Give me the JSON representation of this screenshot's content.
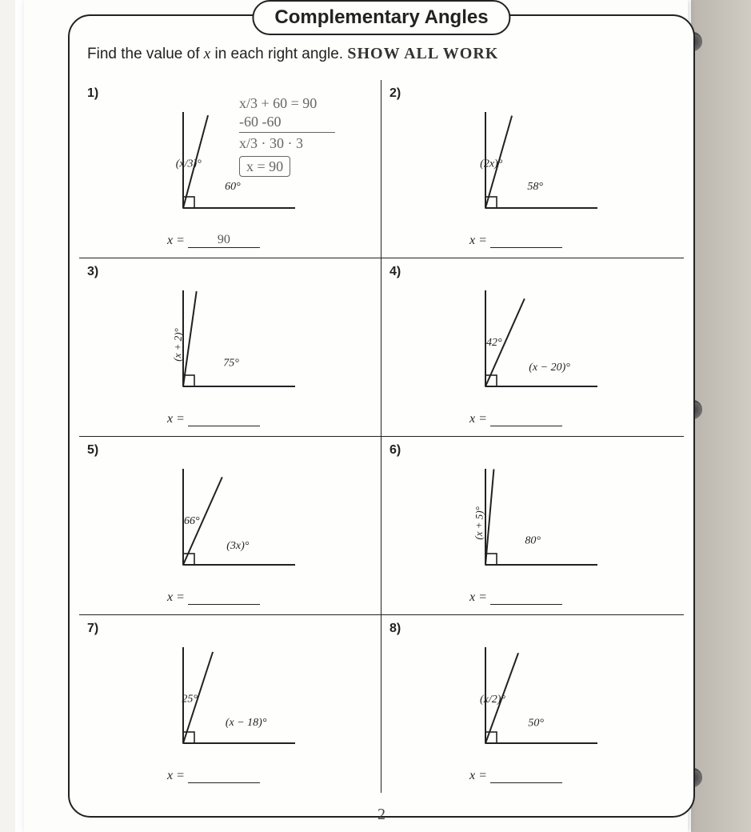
{
  "title": "Complementary Angles",
  "instruction_prefix": "Find the value of ",
  "instruction_var": "x",
  "instruction_suffix": " in each right angle.",
  "instruction_handwritten": " SHOW ALL WORK",
  "footer_page": "2",
  "answer_prefix": "x =",
  "problems": [
    {
      "num": "1)",
      "angle1_label": "(x/3)°",
      "angle2_label": "60°",
      "angle1_deg": 75,
      "angle2_deg_start": 0,
      "angle2_deg_end": 60,
      "answer": "90",
      "work_lines": [
        "x/3 + 60 = 90",
        "   -60   -60",
        "x/3 · 30 · 3",
        "x = 90"
      ],
      "work_box": true
    },
    {
      "num": "2)",
      "angle1_label": "(2x)°",
      "angle2_label": "58°",
      "angle1_deg": 74,
      "angle2_deg_start": 0,
      "angle2_deg_end": 58,
      "answer": ""
    },
    {
      "num": "3)",
      "angle1_label": "(x + 2)°",
      "angle2_label": "75°",
      "angle1_deg": 82,
      "angle2_deg_start": 0,
      "angle2_deg_end": 75,
      "angle1_rotated": true,
      "answer": ""
    },
    {
      "num": "4)",
      "angle1_label": "42°",
      "angle2_label": "(x − 20)°",
      "angle1_deg": 66,
      "angle2_deg_start": 0,
      "angle2_deg_end": 48,
      "answer": ""
    },
    {
      "num": "5)",
      "angle1_label": "66°",
      "angle2_label": "(3x)°",
      "angle1_deg": 66,
      "angle2_deg_start": 0,
      "angle2_deg_end": 24,
      "answer": ""
    },
    {
      "num": "6)",
      "angle1_label": "(x + 5)°",
      "angle2_label": "80°",
      "angle1_deg": 85,
      "angle2_deg_start": 0,
      "angle2_deg_end": 80,
      "angle1_rotated": true,
      "answer": ""
    },
    {
      "num": "7)",
      "angle1_label": "25°",
      "angle2_label": "(x − 18)°",
      "angle1_deg": 72,
      "angle2_deg_start": 0,
      "angle2_deg_end": 65,
      "answer": ""
    },
    {
      "num": "8)",
      "angle1_label": "(x/2)°",
      "angle2_label": "50°",
      "angle1_deg": 70,
      "angle2_deg_start": 0,
      "angle2_deg_end": 50,
      "answer": ""
    }
  ],
  "colors": {
    "line": "#222222",
    "handwriting": "#666666",
    "paper": "#fdfdfb"
  }
}
